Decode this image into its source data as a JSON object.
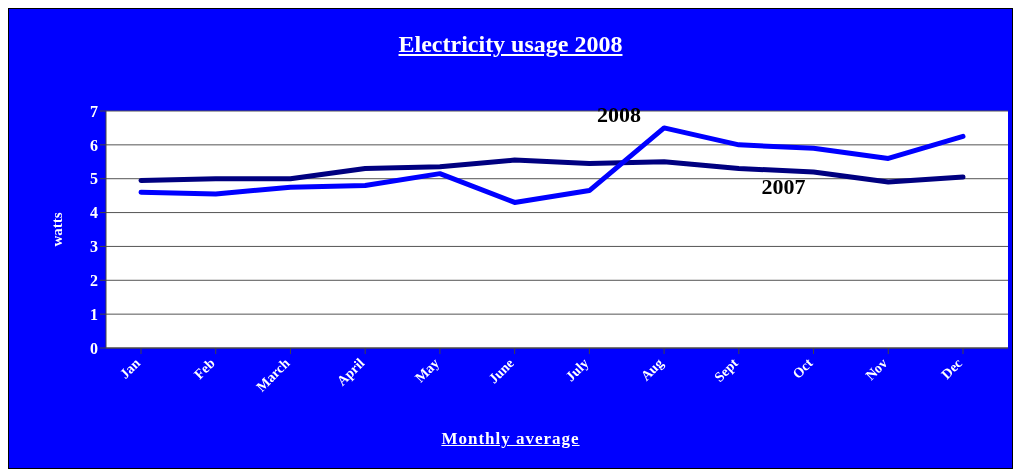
{
  "chart_data": {
    "type": "line",
    "title": "Electricity usage 2008",
    "xlabel": "Monthly average",
    "ylabel": "watts",
    "categories": [
      "Jan",
      "Feb",
      "March",
      "April",
      "May",
      "June",
      "July",
      "Aug",
      "Sept",
      "Oct",
      "Nov",
      "Dec"
    ],
    "series": [
      {
        "name": "2007",
        "color": "#000080",
        "values": [
          4.95,
          5.0,
          5.0,
          5.3,
          5.35,
          5.55,
          5.45,
          5.5,
          5.3,
          5.2,
          4.9,
          5.05
        ]
      },
      {
        "name": "2008",
        "color": "#0000ff",
        "values": [
          4.6,
          4.55,
          4.75,
          4.8,
          5.15,
          4.3,
          4.65,
          6.5,
          6.0,
          5.9,
          5.6,
          6.25
        ]
      }
    ],
    "ylim": [
      0,
      7
    ],
    "yticks": [
      0,
      1,
      2,
      3,
      4,
      5,
      6,
      7
    ],
    "grid": "y",
    "marker": "none",
    "line_style": "solid"
  }
}
